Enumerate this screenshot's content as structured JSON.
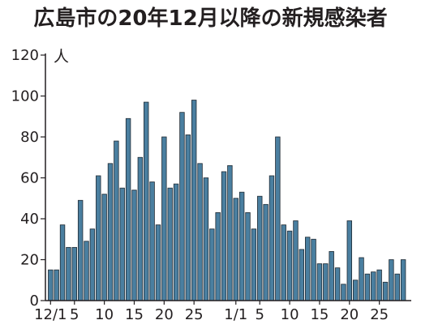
{
  "chart_data": {
    "type": "bar",
    "title": "広島市の20年12月以降の新規感染者",
    "ylabel": "人",
    "ylim": [
      0,
      120
    ],
    "yticks": [
      0,
      20,
      40,
      60,
      80,
      100,
      120
    ],
    "grid": false,
    "bar_color": "#4a7fa0",
    "bar_edge_color": "#1f2a33",
    "x_tick_labels": [
      {
        "index": 0,
        "label": "12/1"
      },
      {
        "index": 4,
        "label": "5"
      },
      {
        "index": 9,
        "label": "10"
      },
      {
        "index": 14,
        "label": "15"
      },
      {
        "index": 19,
        "label": "20"
      },
      {
        "index": 24,
        "label": "25"
      },
      {
        "index": 31,
        "label": "1/1"
      },
      {
        "index": 35,
        "label": "5"
      },
      {
        "index": 40,
        "label": "10"
      },
      {
        "index": 45,
        "label": "15"
      },
      {
        "index": 50,
        "label": "20"
      },
      {
        "index": 55,
        "label": "25"
      }
    ],
    "categories": [
      "12/1",
      "12/2",
      "12/3",
      "12/4",
      "12/5",
      "12/6",
      "12/7",
      "12/8",
      "12/9",
      "12/10",
      "12/11",
      "12/12",
      "12/13",
      "12/14",
      "12/15",
      "12/16",
      "12/17",
      "12/18",
      "12/19",
      "12/20",
      "12/21",
      "12/22",
      "12/23",
      "12/24",
      "12/25",
      "12/26",
      "12/27",
      "12/28",
      "12/29",
      "12/30",
      "12/31",
      "1/1",
      "1/2",
      "1/3",
      "1/4",
      "1/5",
      "1/6",
      "1/7",
      "1/8",
      "1/9",
      "1/10",
      "1/11",
      "1/12",
      "1/13",
      "1/14",
      "1/15",
      "1/16",
      "1/17",
      "1/18",
      "1/19",
      "1/20",
      "1/21",
      "1/22",
      "1/23",
      "1/24",
      "1/25",
      "1/26",
      "1/27",
      "1/28",
      "1/29"
    ],
    "values": [
      15,
      15,
      37,
      26,
      26,
      49,
      29,
      35,
      61,
      52,
      67,
      78,
      55,
      89,
      54,
      70,
      97,
      58,
      37,
      80,
      55,
      57,
      92,
      81,
      98,
      67,
      60,
      35,
      43,
      63,
      66,
      50,
      53,
      43,
      35,
      51,
      47,
      61,
      80,
      37,
      34,
      39,
      25,
      31,
      30,
      18,
      18,
      24,
      16,
      8,
      39,
      10,
      21,
      13,
      14,
      15,
      9,
      20,
      13,
      20
    ]
  }
}
